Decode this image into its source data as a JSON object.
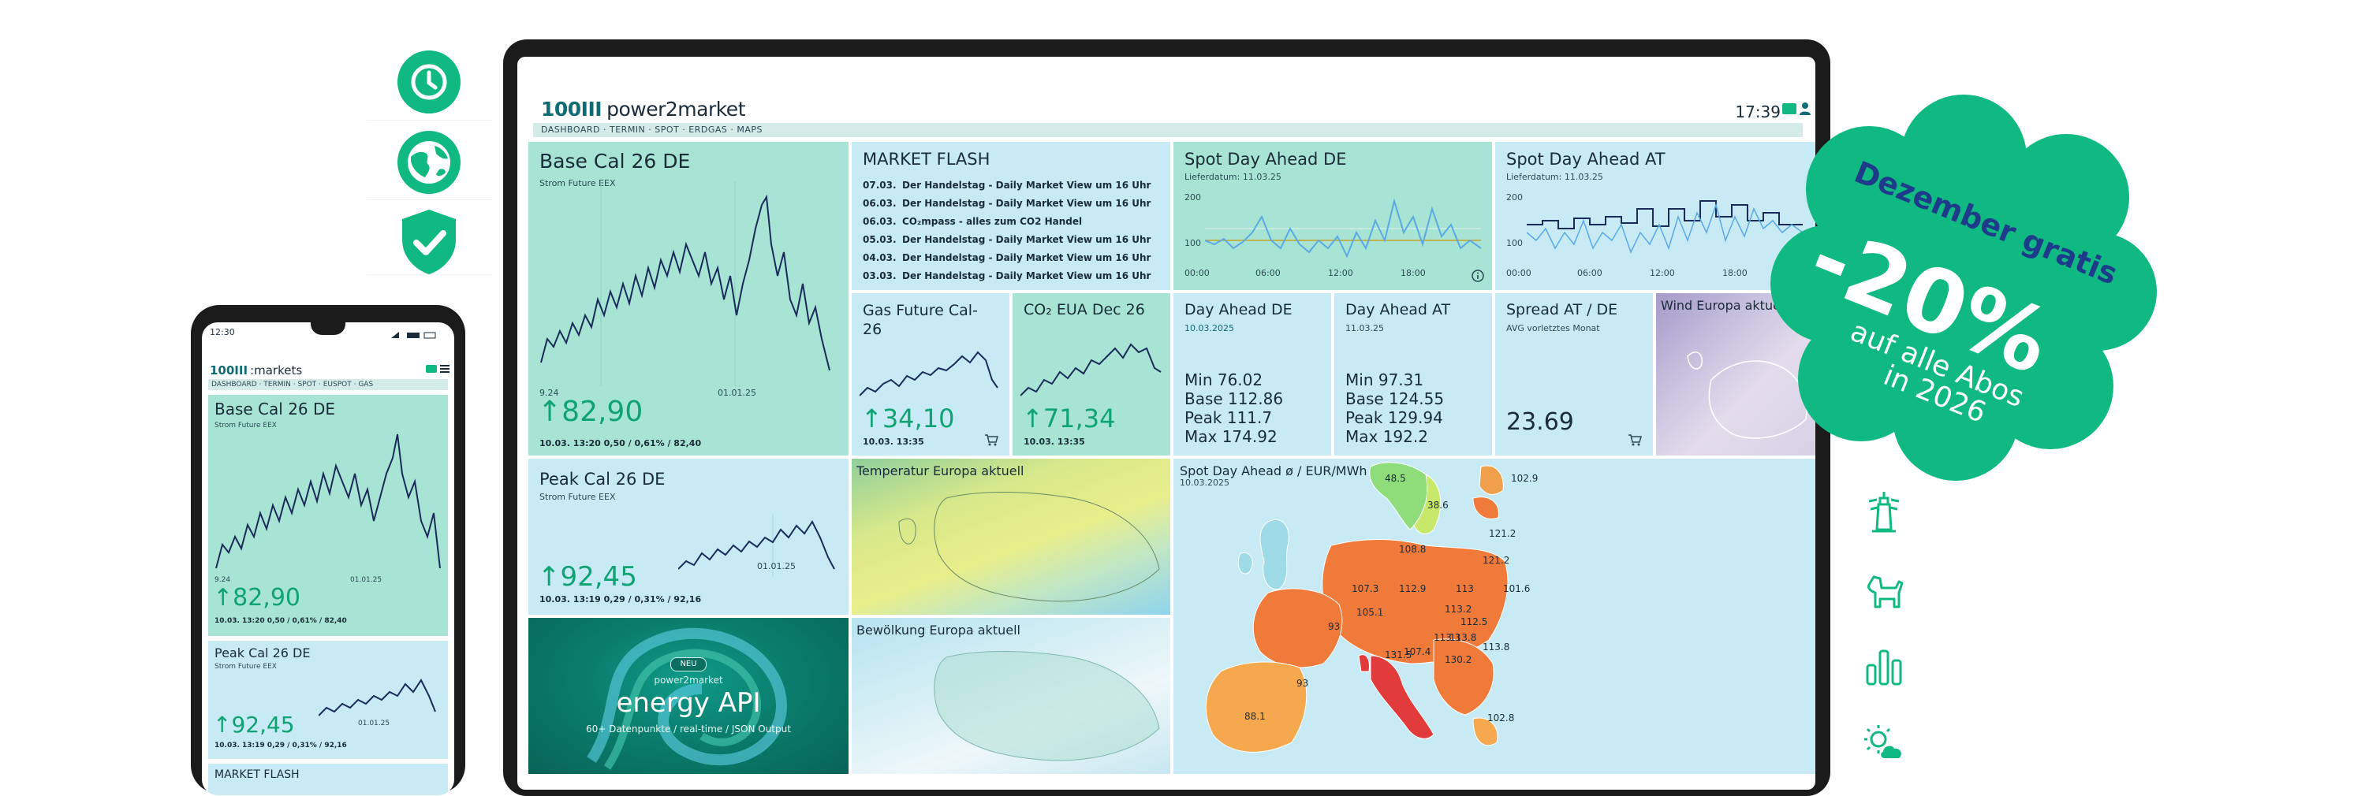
{
  "features": {
    "icons": [
      "clock-icon",
      "globe-icon",
      "shield-check-icon"
    ],
    "right_icons": [
      "lighthouse-icon",
      "dog-icon",
      "bar-chart-icon",
      "sun-cloud-icon"
    ]
  },
  "colors": {
    "brand_green": "#10b981",
    "tile_blue": "#c7eaf5",
    "tile_green": "#a8e4d3",
    "promo_blue": "#1e3a8a"
  },
  "tablet": {
    "logo_mark": "100III",
    "logo_text": "power2market",
    "time": "17:39",
    "nav": "DASHBOARD · TERMIN · SPOT · ERDGAS · MAPS",
    "base_cal": {
      "title": "Base Cal 26 DE",
      "sub": "Strom Future EEX",
      "x_label_left": "9.24",
      "x_label_right": "01.01.25",
      "value": "↑82,90",
      "footer": "10.03. 13:20 0,50 / 0,61% / 82,40"
    },
    "market_flash": {
      "title": "MARKET FLASH",
      "items": [
        {
          "date": "07.03.",
          "text": "Der Handelstag - Daily Market View um 16 Uhr"
        },
        {
          "date": "06.03.",
          "text": "Der Handelstag - Daily Market View um 16 Uhr"
        },
        {
          "date": "06.03.",
          "text": "CO₂mpass - alles zum CO2 Handel"
        },
        {
          "date": "05.03.",
          "text": "Der Handelstag - Daily Market View um 16 Uhr"
        },
        {
          "date": "04.03.",
          "text": "Der Handelstag - Daily Market View um 16 Uhr"
        },
        {
          "date": "03.03.",
          "text": "Der Handelstag - Daily Market View um 16 Uhr"
        }
      ]
    },
    "spot_de": {
      "title": "Spot Day Ahead DE",
      "sub": "Lieferdatum: 11.03.25",
      "y_top": "200",
      "y_mid": "100",
      "x_ticks": [
        "00:00",
        "06:00",
        "12:00",
        "18:00"
      ]
    },
    "spot_at": {
      "title": "Spot Day Ahead AT",
      "sub": "Lieferdatum: 11.03.25",
      "y_top": "200",
      "y_mid": "100",
      "x_ticks": [
        "00:00",
        "06:00",
        "12:00",
        "18:00"
      ]
    },
    "gas": {
      "title": "Gas Future Cal-26",
      "value": "↑34,10",
      "footer": "10.03. 13:35"
    },
    "co2": {
      "title": "CO₂ EUA Dec 26",
      "value": "↑71,34",
      "footer": "10.03. 13:35"
    },
    "dayahead_de": {
      "title": "Day Ahead DE",
      "sub": "10.03.2025",
      "min": "Min 76.02",
      "base": "Base 112.86",
      "peak": "Peak 111.7",
      "max": "Max 174.92"
    },
    "dayahead_at": {
      "title": "Day Ahead AT",
      "sub": "11.03.25",
      "min": "Min 97.31",
      "base": "Base 124.55",
      "peak": "Peak 129.94",
      "max": "Max 192.2"
    },
    "spread": {
      "title": "Spread AT / DE",
      "sub": "AVG vorletztes Monat",
      "value": "23.69"
    },
    "wind": {
      "title": "Wind Europa aktuell"
    },
    "peak_cal": {
      "title": "Peak Cal 26 DE",
      "sub": "Strom Future EEX",
      "x_label": "01.01.25",
      "value": "↑92,45",
      "footer": "10.03. 13:19 0,29 / 0,31% / 92,16"
    },
    "temp": {
      "title": "Temperatur Europa aktuell"
    },
    "cloud": {
      "title": "Bewölkung Europa aktuell"
    },
    "api": {
      "badge": "NEU",
      "brand": "power2market",
      "title": "energy API",
      "sub": "60+ Datenpunkte / real-time / JSON Output"
    },
    "map": {
      "title": "Spot Day Ahead ø / EUR/MWh",
      "sub": "10.03.2025",
      "labels": [
        "48.5",
        "102.9",
        "38.6",
        "121.2",
        "108.8",
        "121.2",
        "107.3",
        "112.9",
        "113",
        "101.6",
        "105.1",
        "113.2",
        "112.5",
        "93",
        "113.3",
        "113.8",
        "113.8",
        "107.4",
        "131.5",
        "130.2",
        "93",
        "88.1",
        "102.8"
      ]
    }
  },
  "phone": {
    "time": "12:30",
    "logo_mark": "100III",
    "logo_text": ":markets",
    "nav": "DASHBOARD · TERMIN · SPOT · EUSPOT · GAS",
    "base": {
      "title": "Base Cal 26 DE",
      "sub": "Strom Future EEX",
      "x_left": "9.24",
      "x_right": "01.01.25",
      "value": "↑82,90",
      "footer": "10.03. 13:20 0,50 / 0,61% / 82,40"
    },
    "peak": {
      "title": "Peak Cal 26 DE",
      "sub": "Strom Future EEX",
      "x_label": "01.01.25",
      "value": "↑92,45",
      "footer": "10.03. 13:19 0,29 / 0,31% / 92,16"
    },
    "flash_title": "MARKET FLASH"
  },
  "promo": {
    "line1": "Dezember gratis",
    "line2": "-20%",
    "line3": "auf alle Abos",
    "line4": "in 2026"
  }
}
